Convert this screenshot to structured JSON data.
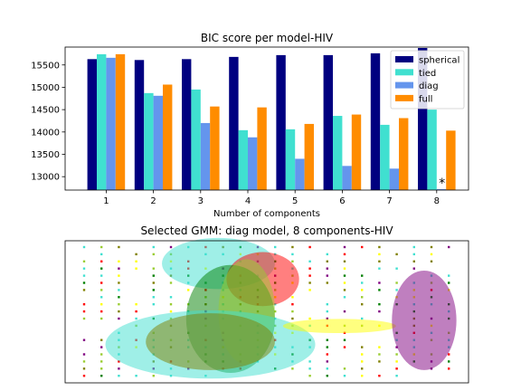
{
  "chart_data": [
    {
      "type": "bar",
      "title": "BIC score per model-HIV",
      "xlabel": "Number of components",
      "ylabel": "",
      "categories": [
        "1",
        "2",
        "3",
        "4",
        "5",
        "6",
        "7",
        "8"
      ],
      "ylim": [
        12700,
        15900
      ],
      "yticks": [
        13000,
        13500,
        14000,
        14500,
        15000,
        15500
      ],
      "legend_position": "top-right",
      "series": [
        {
          "name": "spherical",
          "color": "#000080",
          "values": [
            15630,
            15610,
            15630,
            15680,
            15720,
            15720,
            15760,
            15880
          ]
        },
        {
          "name": "tied",
          "color": "#40e0d0",
          "values": [
            15740,
            14870,
            14950,
            14040,
            14060,
            14360,
            14160,
            14500
          ]
        },
        {
          "name": "diag",
          "color": "#6495ed",
          "values": [
            15660,
            14810,
            14200,
            13880,
            13400,
            13240,
            13180,
            12720
          ]
        },
        {
          "name": "full",
          "color": "#ff8c00",
          "values": [
            15740,
            15060,
            14570,
            14550,
            14180,
            14390,
            14310,
            14030
          ]
        }
      ],
      "best_marker": {
        "text": "*",
        "category": "8",
        "value": 12940
      }
    },
    {
      "type": "scatter",
      "title": "Selected GMM: diag model, 8 components-HIV",
      "xlabel": "",
      "ylabel": "",
      "xlim": [
        0,
        1
      ],
      "ylim": [
        0,
        1
      ],
      "components": [
        {
          "color": "#40e0d0",
          "cx": 0.38,
          "cy": 0.84,
          "rx": 0.14,
          "ry": 0.18
        },
        {
          "color": "#ff0000",
          "cx": 0.49,
          "cy": 0.73,
          "rx": 0.09,
          "ry": 0.19
        },
        {
          "color": "#008000",
          "cx": 0.41,
          "cy": 0.45,
          "rx": 0.11,
          "ry": 0.38
        },
        {
          "color": "#9acd32",
          "cx": 0.45,
          "cy": 0.5,
          "rx": 0.07,
          "ry": 0.37
        },
        {
          "color": "#40e0d0",
          "cx": 0.36,
          "cy": 0.27,
          "rx": 0.26,
          "ry": 0.24
        },
        {
          "color": "#808000",
          "cx": 0.36,
          "cy": 0.29,
          "rx": 0.16,
          "ry": 0.2
        },
        {
          "color": "#ffff00",
          "cx": 0.68,
          "cy": 0.4,
          "rx": 0.14,
          "ry": 0.05
        },
        {
          "color": "#800080",
          "cx": 0.89,
          "cy": 0.44,
          "rx": 0.08,
          "ry": 0.35
        }
      ]
    }
  ]
}
